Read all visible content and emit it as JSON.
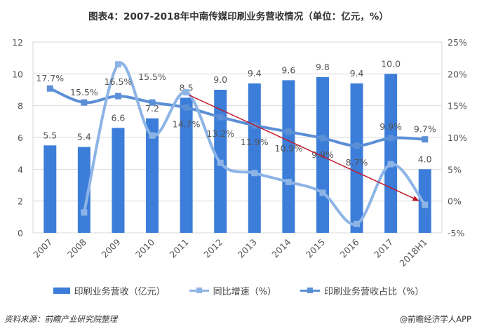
{
  "title": "图表4：2007-2018年中南传媒印刷业务营收情况（单位：亿元，%）",
  "source": "资料来源：前瞻产业研究院整理",
  "credit": "@前瞻经济学人APP",
  "chart_data": {
    "type": "bar+line",
    "title": "图表4：2007-2018年中南传媒印刷业务营收情况（单位：亿元，%）",
    "categories": [
      "2007",
      "2008",
      "2009",
      "2010",
      "2011",
      "2012",
      "2013",
      "2014",
      "2015",
      "2016",
      "2017",
      "2018H1"
    ],
    "left_axis": {
      "ylim": [
        0,
        12
      ],
      "ticks": [
        "0",
        "2",
        "4",
        "6",
        "8",
        "10",
        "12"
      ]
    },
    "right_axis": {
      "ylim": [
        -5,
        25
      ],
      "ticks": [
        "-5%",
        "0%",
        "5%",
        "10%",
        "15%",
        "20%",
        "25%"
      ]
    },
    "grid": true,
    "legend_position": "bottom",
    "series": [
      {
        "name": "印刷业务营收（亿元）",
        "type": "bar",
        "axis": "left",
        "color": "#3b7dd8",
        "values": [
          5.5,
          5.4,
          6.6,
          7.2,
          8.5,
          9.0,
          9.4,
          9.6,
          9.8,
          9.4,
          10.0,
          4.0
        ],
        "labels": [
          "5.5",
          "5.4",
          "6.6",
          "7.2",
          "8.5",
          "9.0",
          "9.4",
          "9.6",
          "9.8",
          "9.4",
          "10.0",
          "4.0"
        ]
      },
      {
        "name": "同比增速（%）",
        "type": "line",
        "axis": "right",
        "color": "#8db4e6",
        "values": [
          null,
          -1.8,
          21.5,
          10.3,
          17.1,
          6.0,
          4.4,
          3.0,
          1.3,
          -3.6,
          5.8,
          -0.6
        ]
      },
      {
        "name": "印刷业务营收占比（%）",
        "type": "line",
        "axis": "right",
        "color": "#5b8fd6",
        "values": [
          17.7,
          15.5,
          16.5,
          15.5,
          14.7,
          13.2,
          11.9,
          10.9,
          9.9,
          8.7,
          9.9,
          9.7
        ],
        "labels": [
          "17.7%",
          "15.5%",
          "16.5%",
          "15.5%",
          "14.7%",
          "13.2%",
          "11.9%",
          "10.9%",
          "9.9%",
          "8.7%",
          "9.9%",
          "9.7%"
        ]
      }
    ],
    "annotations": [
      {
        "type": "arrow",
        "color": "#c0182a",
        "from_category": "2011",
        "to_category": "2018H1"
      }
    ]
  }
}
